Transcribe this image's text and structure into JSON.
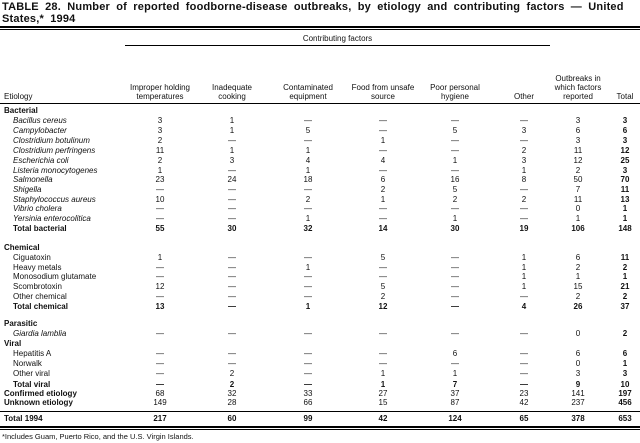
{
  "title": "TABLE 28. Number of reported foodborne-disease outbreaks, by etiology and contributing factors — United States,* 1994",
  "header": {
    "group": "Contributing factors",
    "etiology": "Etiology",
    "columns": [
      "Improper holding temperatures",
      "Inadequate cooking",
      "Contaminated equipment",
      "Food from unsafe source",
      "Poor personal hygiene",
      "Other",
      "Outbreaks in which factors reported",
      "Total"
    ]
  },
  "rows": [
    {
      "label": "Bacterial",
      "type": "section"
    },
    {
      "label": "Bacillus cereus",
      "type": "item",
      "italic": true,
      "values": [
        "3",
        "1",
        "—",
        "—",
        "—",
        "—",
        "3",
        "3"
      ]
    },
    {
      "label": "Campylobacter",
      "type": "item",
      "italic": true,
      "values": [
        "3",
        "1",
        "5",
        "—",
        "5",
        "3",
        "6",
        "6"
      ]
    },
    {
      "label": "Clostridium botulinum",
      "type": "item",
      "italic": true,
      "values": [
        "2",
        "—",
        "—",
        "1",
        "—",
        "—",
        "3",
        "3"
      ]
    },
    {
      "label": "Clostridium perfringens",
      "type": "item",
      "italic": true,
      "values": [
        "11",
        "1",
        "1",
        "—",
        "—",
        "2",
        "11",
        "12"
      ]
    },
    {
      "label": "Escherichia coli",
      "type": "item",
      "italic": true,
      "values": [
        "2",
        "3",
        "4",
        "4",
        "1",
        "3",
        "12",
        "25"
      ]
    },
    {
      "label": "Listeria monocytogenes",
      "type": "item",
      "italic": true,
      "values": [
        "1",
        "—",
        "1",
        "—",
        "—",
        "1",
        "2",
        "3"
      ]
    },
    {
      "label": "Salmonella",
      "type": "item",
      "italic": true,
      "values": [
        "23",
        "24",
        "18",
        "6",
        "16",
        "8",
        "50",
        "70"
      ]
    },
    {
      "label": "Shigella",
      "type": "item",
      "italic": true,
      "values": [
        "—",
        "—",
        "—",
        "2",
        "5",
        "—",
        "7",
        "11"
      ]
    },
    {
      "label": "Staphylococcus aureus",
      "type": "item",
      "italic": true,
      "values": [
        "10",
        "—",
        "2",
        "1",
        "2",
        "2",
        "11",
        "13"
      ]
    },
    {
      "label": "Vibrio cholera",
      "type": "item",
      "italic": true,
      "values": [
        "—",
        "—",
        "—",
        "—",
        "—",
        "—",
        "0",
        "1"
      ]
    },
    {
      "label": "Yersinia enterocolitica",
      "type": "item",
      "italic": true,
      "values": [
        "—",
        "—",
        "1",
        "—",
        "1",
        "—",
        "1",
        "1"
      ]
    },
    {
      "label": "Total bacterial",
      "type": "total",
      "values": [
        "55",
        "30",
        "32",
        "14",
        "30",
        "19",
        "106",
        "148"
      ]
    },
    {
      "label": "Chemical",
      "type": "section"
    },
    {
      "label": "Ciguatoxin",
      "type": "item",
      "values": [
        "1",
        "—",
        "—",
        "5",
        "—",
        "1",
        "6",
        "11"
      ]
    },
    {
      "label": "Heavy metals",
      "type": "item",
      "values": [
        "—",
        "—",
        "1",
        "—",
        "—",
        "1",
        "2",
        "2"
      ]
    },
    {
      "label": "Monosodium glutamate",
      "type": "item",
      "values": [
        "—",
        "—",
        "—",
        "—",
        "—",
        "1",
        "1",
        "1"
      ]
    },
    {
      "label": "Scombrotoxin",
      "type": "item",
      "values": [
        "12",
        "—",
        "—",
        "5",
        "—",
        "1",
        "15",
        "21"
      ]
    },
    {
      "label": "Other chemical",
      "type": "item",
      "values": [
        "—",
        "—",
        "—",
        "2",
        "—",
        "—",
        "2",
        "2"
      ]
    },
    {
      "label": "Total chemical",
      "type": "total",
      "values": [
        "13",
        "—",
        "1",
        "12",
        "—",
        "4",
        "26",
        "37"
      ]
    },
    {
      "label": "Parasitic",
      "type": "section"
    },
    {
      "label": "Giardia lamblia",
      "type": "item",
      "italic": true,
      "values": [
        "—",
        "—",
        "—",
        "—",
        "—",
        "—",
        "0",
        "2"
      ]
    },
    {
      "label": "Viral",
      "type": "section"
    },
    {
      "label": "Hepatitis A",
      "type": "item",
      "values": [
        "—",
        "—",
        "—",
        "—",
        "6",
        "—",
        "6",
        "6"
      ]
    },
    {
      "label": "Norwalk",
      "type": "item",
      "values": [
        "—",
        "—",
        "—",
        "—",
        "—",
        "—",
        "0",
        "1"
      ]
    },
    {
      "label": "Other viral",
      "type": "item",
      "values": [
        "—",
        "2",
        "—",
        "1",
        "1",
        "—",
        "3",
        "3"
      ]
    },
    {
      "label": "Total viral",
      "type": "total",
      "values": [
        "—",
        "2",
        "—",
        "1",
        "7",
        "—",
        "9",
        "10"
      ]
    },
    {
      "label": "Confirmed etiology",
      "type": "summary",
      "values": [
        "68",
        "32",
        "33",
        "27",
        "37",
        "23",
        "141",
        "197"
      ]
    },
    {
      "label": "Unknown etiology",
      "type": "summary",
      "values": [
        "149",
        "28",
        "66",
        "15",
        "87",
        "42",
        "237",
        "456"
      ]
    },
    {
      "label": "Total 1994",
      "type": "grand",
      "values": [
        "217",
        "60",
        "99",
        "42",
        "124",
        "65",
        "378",
        "653"
      ]
    }
  ],
  "footnote": "*Includes Guam, Puerto Rico, and the U.S. Virgin Islands."
}
